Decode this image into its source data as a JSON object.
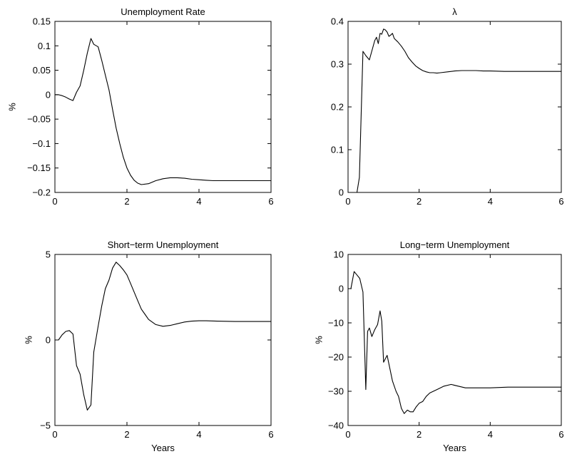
{
  "chart_data": [
    {
      "type": "line",
      "title": "Unemployment Rate",
      "xlabel": "",
      "ylabel": "%",
      "xlim": [
        0,
        6
      ],
      "ylim": [
        -0.2,
        0.15
      ],
      "xticks": [
        0,
        2,
        4,
        6
      ],
      "xtick_labels": [
        "0",
        "2",
        "4",
        "6"
      ],
      "yticks": [
        -0.2,
        -0.15,
        -0.1,
        -0.05,
        0,
        0.05,
        0.1,
        0.15
      ],
      "ytick_labels": [
        "−0.2",
        "−0.15",
        "−0.1",
        "−0.05",
        "0",
        "0.05",
        "0.1",
        "0.15"
      ],
      "series": [
        {
          "x": [
            0.0,
            0.1,
            0.2,
            0.3,
            0.4,
            0.5,
            0.6,
            0.7,
            0.8,
            0.9,
            1.0,
            1.08,
            1.2,
            1.3,
            1.4,
            1.5,
            1.6,
            1.7,
            1.8,
            1.9,
            2.0,
            2.1,
            2.2,
            2.3,
            2.4,
            2.6,
            2.8,
            3.0,
            3.2,
            3.4,
            3.6,
            3.8,
            4.0,
            4.2,
            4.4,
            4.6,
            5.0,
            5.5,
            6.0
          ],
          "y": [
            0.0,
            0.0,
            -0.002,
            -0.005,
            -0.009,
            -0.012,
            0.005,
            0.018,
            0.05,
            0.085,
            0.115,
            0.103,
            0.098,
            0.07,
            0.04,
            0.01,
            -0.03,
            -0.068,
            -0.1,
            -0.128,
            -0.15,
            -0.165,
            -0.175,
            -0.181,
            -0.184,
            -0.182,
            -0.176,
            -0.172,
            -0.17,
            -0.17,
            -0.171,
            -0.173,
            -0.174,
            -0.175,
            -0.176,
            -0.176,
            -0.176,
            -0.176,
            -0.176
          ]
        }
      ]
    },
    {
      "type": "line",
      "title": "λ",
      "xlabel": "",
      "ylabel": "",
      "xlim": [
        0,
        6
      ],
      "ylim": [
        0,
        0.4
      ],
      "xticks": [
        0,
        2,
        4,
        6
      ],
      "xtick_labels": [
        "0",
        "2",
        "4",
        "6"
      ],
      "yticks": [
        0,
        0.1,
        0.2,
        0.3,
        0.4
      ],
      "ytick_labels": [
        "0",
        "0.1",
        "0.2",
        "0.3",
        "0.4"
      ],
      "series": [
        {
          "x": [
            0.25,
            0.32,
            0.42,
            0.5,
            0.6,
            0.7,
            0.75,
            0.8,
            0.85,
            0.9,
            0.95,
            1.0,
            1.05,
            1.1,
            1.15,
            1.2,
            1.25,
            1.3,
            1.4,
            1.5,
            1.6,
            1.7,
            1.8,
            1.9,
            2.0,
            2.1,
            2.2,
            2.3,
            2.4,
            2.5,
            2.6,
            2.8,
            3.0,
            3.2,
            3.4,
            3.6,
            3.8,
            4.0,
            4.4,
            5.0,
            6.0
          ],
          "y": [
            0.0,
            0.035,
            0.33,
            0.32,
            0.31,
            0.34,
            0.355,
            0.363,
            0.348,
            0.372,
            0.37,
            0.382,
            0.38,
            0.375,
            0.365,
            0.368,
            0.372,
            0.36,
            0.352,
            0.342,
            0.33,
            0.315,
            0.305,
            0.296,
            0.29,
            0.285,
            0.282,
            0.28,
            0.28,
            0.279,
            0.28,
            0.282,
            0.284,
            0.285,
            0.285,
            0.285,
            0.284,
            0.284,
            0.283,
            0.283,
            0.283
          ]
        }
      ]
    },
    {
      "type": "line",
      "title": "Short−term Unemployment",
      "xlabel": "Years",
      "ylabel": "%",
      "xlim": [
        0,
        6
      ],
      "ylim": [
        -5,
        5
      ],
      "xticks": [
        0,
        2,
        4,
        6
      ],
      "xtick_labels": [
        "0",
        "2",
        "4",
        "6"
      ],
      "yticks": [
        -5,
        0,
        5
      ],
      "ytick_labels": [
        "−5",
        "0",
        "5"
      ],
      "series": [
        {
          "x": [
            0.0,
            0.1,
            0.2,
            0.3,
            0.4,
            0.5,
            0.6,
            0.7,
            0.8,
            0.9,
            1.0,
            1.08,
            1.2,
            1.3,
            1.4,
            1.5,
            1.6,
            1.7,
            1.8,
            1.9,
            2.0,
            2.1,
            2.2,
            2.3,
            2.4,
            2.5,
            2.6,
            2.8,
            3.0,
            3.2,
            3.4,
            3.6,
            3.8,
            4.0,
            4.2,
            4.5,
            5.0,
            5.5,
            6.0
          ],
          "y": [
            0.0,
            0.0,
            0.3,
            0.5,
            0.55,
            0.35,
            -1.5,
            -2.0,
            -3.2,
            -4.1,
            -3.8,
            -0.7,
            0.8,
            2.0,
            3.0,
            3.5,
            4.2,
            4.55,
            4.35,
            4.1,
            3.8,
            3.3,
            2.8,
            2.3,
            1.8,
            1.5,
            1.2,
            0.9,
            0.8,
            0.85,
            0.95,
            1.05,
            1.1,
            1.12,
            1.12,
            1.1,
            1.08,
            1.08,
            1.08
          ]
        }
      ]
    },
    {
      "type": "line",
      "title": "Long−term Unemployment",
      "xlabel": "Years",
      "ylabel": "%",
      "xlim": [
        0,
        6
      ],
      "ylim": [
        -40,
        10
      ],
      "xticks": [
        0,
        2,
        4,
        6
      ],
      "xtick_labels": [
        "0",
        "2",
        "4",
        "6"
      ],
      "yticks": [
        -40,
        -30,
        -20,
        -10,
        0,
        10
      ],
      "ytick_labels": [
        "−40",
        "−30",
        "−20",
        "−10",
        "0",
        "10"
      ],
      "series": [
        {
          "x": [
            0.0,
            0.08,
            0.17,
            0.25,
            0.33,
            0.42,
            0.5,
            0.55,
            0.6,
            0.67,
            0.75,
            0.83,
            0.9,
            0.95,
            1.0,
            1.05,
            1.1,
            1.15,
            1.25,
            1.35,
            1.42,
            1.5,
            1.58,
            1.67,
            1.75,
            1.83,
            1.92,
            2.0,
            2.1,
            2.2,
            2.3,
            2.5,
            2.7,
            2.9,
            3.1,
            3.3,
            3.6,
            4.0,
            4.5,
            5.0,
            6.0
          ],
          "y": [
            0.0,
            0.0,
            5.0,
            4.0,
            3.0,
            -1.0,
            -29.5,
            -12.5,
            -11.5,
            -14.0,
            -12.0,
            -10.5,
            -6.5,
            -9.5,
            -21.5,
            -20.5,
            -19.5,
            -22.0,
            -27.0,
            -30.0,
            -31.5,
            -35.0,
            -36.5,
            -35.5,
            -36.0,
            -36.0,
            -34.5,
            -33.5,
            -33.0,
            -31.5,
            -30.5,
            -29.5,
            -28.5,
            -28.0,
            -28.5,
            -29.0,
            -29.0,
            -29.0,
            -28.8,
            -28.8,
            -28.8
          ]
        }
      ]
    }
  ]
}
